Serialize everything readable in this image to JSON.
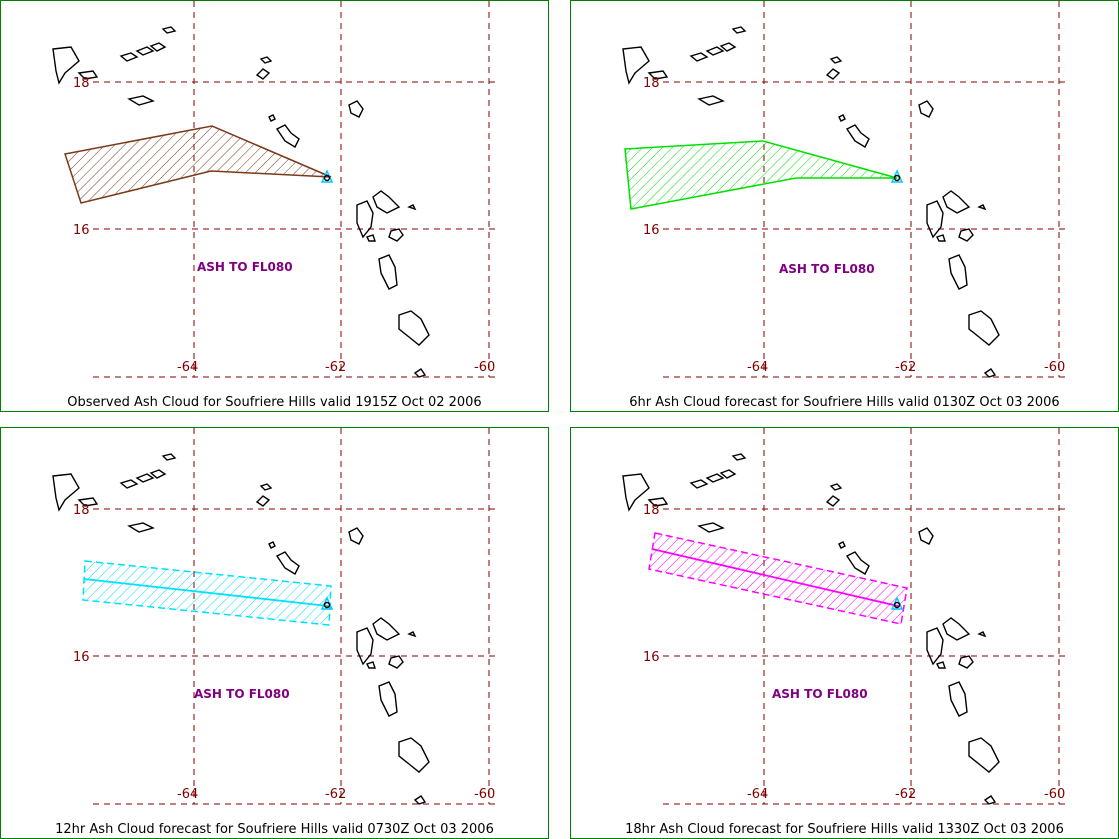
{
  "map": {
    "lat_labels": [
      "18",
      "16"
    ],
    "lon_labels": [
      "-64",
      "-62",
      "-60"
    ],
    "colors": {
      "border": "#008000",
      "grid": "#800000",
      "label_text": "#800000",
      "annotation": "#800080",
      "coast": "#000000",
      "volcano": "#00c8ff"
    }
  },
  "panels": [
    {
      "id": "observed",
      "caption": "Observed Ash Cloud for Soufriere  Hills valid 1915Z Oct 02 2006",
      "annotation": "ASH TO FL080",
      "cloud_color": "#7a3a1a",
      "cloud_shape": "polygon"
    },
    {
      "id": "6hr",
      "caption": "6hr Ash Cloud forecast for Soufriere  Hills valid 0130Z Oct 03 2006",
      "annotation": "ASH TO FL080",
      "cloud_color": "#00e000",
      "cloud_shape": "polygon"
    },
    {
      "id": "12hr",
      "caption": "12hr Ash Cloud forecast for Soufriere  Hills valid 0730Z Oct 03 2006",
      "annotation": "ASH TO FL080",
      "cloud_color": "#00e0ff",
      "cloud_shape": "band"
    },
    {
      "id": "18hr",
      "caption": "18hr Ash Cloud forecast for Soufriere  Hills valid 1330Z Oct 03 2006",
      "annotation": "ASH TO FL080",
      "cloud_color": "#ff00ff",
      "cloud_shape": "band"
    }
  ]
}
